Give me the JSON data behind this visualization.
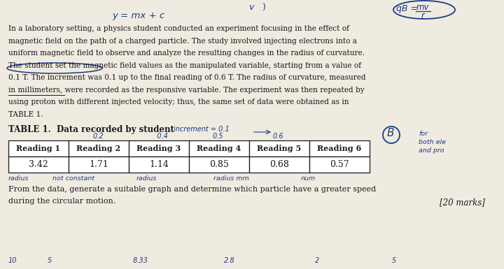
{
  "body_text": "In a laboratory setting, a physics student conducted an experiment focusing in the effect of\nmagnetic field on the path of a charged particle. The study involved injecting electrons into a\nuniform magnetic field to observe and analyze the resulting changes in the radius of curvature.\nThe student set the magnetic field values as the manipulated variable, starting from a value of\n0.1 T. The increment was 0.1 up to the final reading of 0.6 T. The radius of curvature, measured\nin millimeters, were recorded as the responsive variable. The experiment was then repeated by\nusing proton with different injected velocity; thus, the same set of data were obtained as in\nTABLE 1.",
  "table_title": "TABLE 1.  Data recorded by student",
  "table_headers": [
    "Reading 1",
    "Reading 2",
    "Reading 3",
    "Reading 4",
    "Reading 5",
    "Reading 6"
  ],
  "table_values": [
    "3.42",
    "1.71",
    "1.14",
    "0.85",
    "0.68",
    "0.57"
  ],
  "bottom_text": "From the data, generate a suitable graph and determine which particle have a greater speed\nduring the circular motion.",
  "marks_text": "[20 marks]",
  "background_color": "#f0ebe0",
  "text_color": "#1a1a1a",
  "handwritten_color": "#1a3a8a"
}
